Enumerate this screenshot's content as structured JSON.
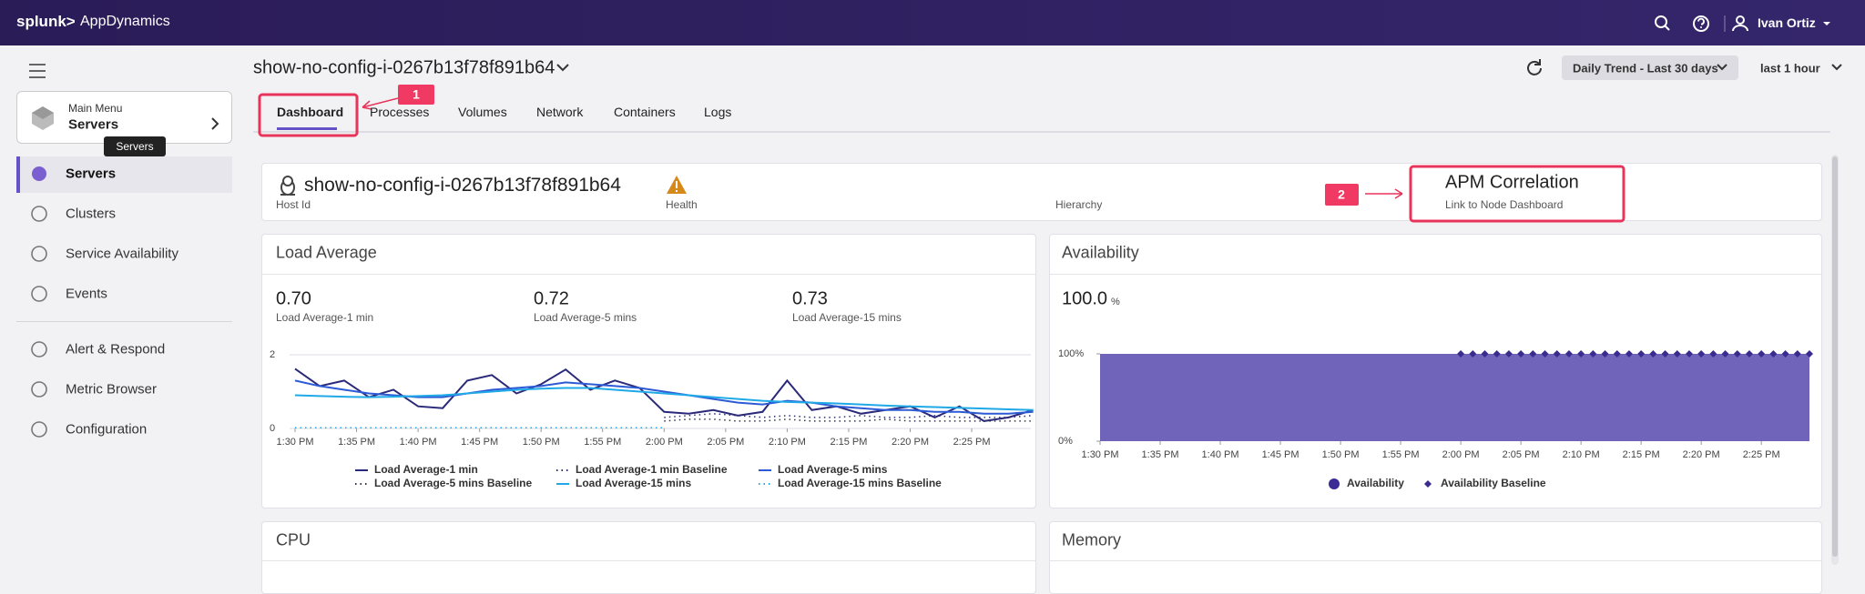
{
  "header": {
    "brand": "splunk>",
    "product": "AppDynamics",
    "user": "Ivan Ortiz"
  },
  "sidebar": {
    "main_menu_label": "Main Menu",
    "main_menu_value": "Servers",
    "tooltip": "Servers",
    "items": [
      "Servers",
      "Clusters",
      "Service Availability",
      "Events",
      "Alert & Respond",
      "Metric Browser",
      "Configuration"
    ]
  },
  "page": {
    "title": "show-no-config-i-0267b13f78f891b64",
    "trend_button": "Daily Trend - Last 30 days",
    "time_window": "last 1 hour",
    "tabs": [
      "Dashboard",
      "Processes",
      "Volumes",
      "Network",
      "Containers",
      "Logs"
    ]
  },
  "annotations": [
    "1",
    "2"
  ],
  "host_card": {
    "host": "show-no-config-i-0267b13f78f891b64",
    "host_label": "Host Id",
    "health_label": "Health",
    "hierarchy_label": "Hierarchy",
    "apm_title": "APM Correlation",
    "apm_link": "Link to Node Dashboard"
  },
  "load_average": {
    "title": "Load Average",
    "metrics": [
      {
        "value": "0.70",
        "label": "Load Average-1 min"
      },
      {
        "value": "0.72",
        "label": "Load Average-5 mins"
      },
      {
        "value": "0.73",
        "label": "Load Average-15 mins"
      }
    ],
    "chart": {
      "type": "line",
      "xlim": [
        0,
        60
      ],
      "ylim": [
        0,
        2
      ],
      "yticks": [
        0,
        2
      ],
      "grid": true,
      "xticks": [
        {
          "value": 0,
          "label": "1:30 PM"
        },
        {
          "value": 5,
          "label": "1:35 PM"
        },
        {
          "value": 10,
          "label": "1:40 PM"
        },
        {
          "value": 15,
          "label": "1:45 PM"
        },
        {
          "value": 20,
          "label": "1:50 PM"
        },
        {
          "value": 25,
          "label": "1:55 PM"
        },
        {
          "value": 30,
          "label": "2:00 PM"
        },
        {
          "value": 35,
          "label": "2:05 PM"
        },
        {
          "value": 40,
          "label": "2:10 PM"
        },
        {
          "value": 45,
          "label": "2:15 PM"
        },
        {
          "value": 50,
          "label": "2:20 PM"
        },
        {
          "value": 55,
          "label": "2:25 PM"
        }
      ],
      "x": [
        0,
        2,
        4,
        6,
        8,
        10,
        12,
        14,
        16,
        18,
        20,
        22,
        24,
        26,
        28,
        30,
        32,
        34,
        36,
        38,
        40,
        42,
        44,
        46,
        48,
        50,
        52,
        54,
        56,
        58,
        60
      ],
      "series": [
        {
          "name": "Load Average-1 min",
          "color": "#2b2a7a",
          "style": "solid",
          "values": [
            1.62,
            1.15,
            1.3,
            0.85,
            1.05,
            0.6,
            0.55,
            1.3,
            1.45,
            0.95,
            1.2,
            1.6,
            1.05,
            1.3,
            1.1,
            0.45,
            0.4,
            0.5,
            0.35,
            0.45,
            1.3,
            0.5,
            0.6,
            0.4,
            0.5,
            0.6,
            0.3,
            0.6,
            0.2,
            0.3,
            0.5
          ]
        },
        {
          "name": "Load Average-1 min Baseline",
          "color": "#2b2a7a",
          "style": "dotted",
          "values": [
            null,
            null,
            null,
            null,
            null,
            null,
            null,
            null,
            null,
            null,
            null,
            null,
            null,
            null,
            null,
            0.3,
            0.35,
            0.4,
            0.35,
            0.3,
            0.35,
            0.3,
            0.3,
            0.35,
            0.3,
            0.3,
            0.35,
            0.3,
            0.3,
            0.3,
            0.35
          ]
        },
        {
          "name": "Load Average-5 mins",
          "color": "#2d5bd6",
          "style": "solid",
          "values": [
            1.3,
            1.15,
            1.05,
            0.95,
            0.9,
            0.85,
            0.85,
            0.95,
            1.05,
            1.1,
            1.15,
            1.25,
            1.2,
            1.15,
            1.1,
            1.0,
            0.9,
            0.8,
            0.7,
            0.65,
            0.75,
            0.7,
            0.6,
            0.55,
            0.5,
            0.5,
            0.45,
            0.45,
            0.4,
            0.4,
            0.45
          ]
        },
        {
          "name": "Load Average-5 mins Baseline",
          "color": "#333344",
          "style": "dotted",
          "values": [
            null,
            null,
            null,
            null,
            null,
            null,
            null,
            null,
            null,
            null,
            null,
            null,
            null,
            null,
            null,
            0.2,
            0.25,
            0.25,
            0.2,
            0.2,
            0.25,
            0.2,
            0.2,
            0.2,
            0.25,
            0.2,
            0.2,
            0.2,
            0.2,
            0.2,
            0.2
          ]
        },
        {
          "name": "Load Average-15 mins",
          "color": "#1fa9e6",
          "style": "solid",
          "values": [
            0.9,
            0.88,
            0.86,
            0.85,
            0.86,
            0.88,
            0.9,
            0.95,
            1.0,
            1.05,
            1.08,
            1.1,
            1.1,
            1.05,
            1.0,
            0.95,
            0.9,
            0.85,
            0.8,
            0.75,
            0.72,
            0.7,
            0.68,
            0.65,
            0.62,
            0.6,
            0.58,
            0.56,
            0.54,
            0.52,
            0.5
          ]
        },
        {
          "name": "Load Average-15 mins Baseline",
          "color": "#1fa9e6",
          "style": "dotted",
          "values": [
            0.02,
            0.02,
            0.02,
            0.02,
            0.02,
            0.02,
            0.02,
            0.02,
            0.02,
            0.02,
            0.02,
            0.02,
            0.02,
            0.02,
            0.02,
            0.02,
            null,
            null,
            null,
            null,
            null,
            null,
            null,
            null,
            null,
            null,
            null,
            null,
            null,
            null,
            null
          ]
        }
      ]
    }
  },
  "availability": {
    "title": "Availability",
    "value": "100.0",
    "unit": "%",
    "chart": {
      "type": "area",
      "xlim": [
        0,
        59
      ],
      "ylim": [
        0,
        100
      ],
      "yticks": [
        {
          "value": 0,
          "label": "0%"
        },
        {
          "value": 100,
          "label": "100%"
        }
      ],
      "xticks": [
        {
          "value": 0,
          "label": "1:30 PM"
        },
        {
          "value": 5,
          "label": "1:35 PM"
        },
        {
          "value": 10,
          "label": "1:40 PM"
        },
        {
          "value": 15,
          "label": "1:45 PM"
        },
        {
          "value": 20,
          "label": "1:50 PM"
        },
        {
          "value": 25,
          "label": "1:55 PM"
        },
        {
          "value": 30,
          "label": "2:00 PM"
        },
        {
          "value": 35,
          "label": "2:05 PM"
        },
        {
          "value": 40,
          "label": "2:10 PM"
        },
        {
          "value": 45,
          "label": "2:15 PM"
        },
        {
          "value": 50,
          "label": "2:20 PM"
        },
        {
          "value": 55,
          "label": "2:25 PM"
        }
      ],
      "x": [
        0,
        1,
        2,
        3,
        4,
        5,
        6,
        7,
        8,
        9,
        10,
        11,
        12,
        13,
        14,
        15,
        16,
        17,
        18,
        19,
        20,
        21,
        22,
        23,
        24,
        25,
        26,
        27,
        28,
        29,
        30,
        31,
        32,
        33,
        34,
        35,
        36,
        37,
        38,
        39,
        40,
        41,
        42,
        43,
        44,
        45,
        46,
        47,
        48,
        49,
        50,
        51,
        52,
        53,
        54,
        55,
        56,
        57,
        58,
        59
      ],
      "series": [
        {
          "name": "Availability",
          "color": "#7063ba",
          "style": "area",
          "values": [
            100,
            100,
            100,
            100,
            100,
            100,
            100,
            100,
            100,
            100,
            100,
            100,
            100,
            100,
            100,
            100,
            100,
            100,
            100,
            100,
            100,
            100,
            100,
            100,
            100,
            100,
            100,
            100,
            100,
            100,
            100,
            100,
            100,
            100,
            100,
            100,
            100,
            100,
            100,
            100,
            100,
            100,
            100,
            100,
            100,
            100,
            100,
            100,
            100,
            100,
            100,
            100,
            100,
            100,
            100,
            100,
            100,
            100,
            100,
            100
          ]
        },
        {
          "name": "Availability Baseline",
          "color": "#3a2b8f",
          "style": "diamond",
          "values": [
            null,
            null,
            null,
            null,
            null,
            null,
            null,
            null,
            null,
            null,
            null,
            null,
            null,
            null,
            null,
            null,
            null,
            null,
            null,
            null,
            null,
            null,
            null,
            null,
            null,
            null,
            null,
            null,
            null,
            null,
            100,
            100,
            100,
            100,
            100,
            100,
            100,
            100,
            100,
            100,
            100,
            100,
            100,
            100,
            100,
            100,
            100,
            100,
            100,
            100,
            100,
            100,
            100,
            100,
            100,
            100,
            100,
            100,
            100,
            100
          ]
        }
      ]
    }
  },
  "cpu": {
    "title": "CPU"
  },
  "memory": {
    "title": "Memory"
  }
}
